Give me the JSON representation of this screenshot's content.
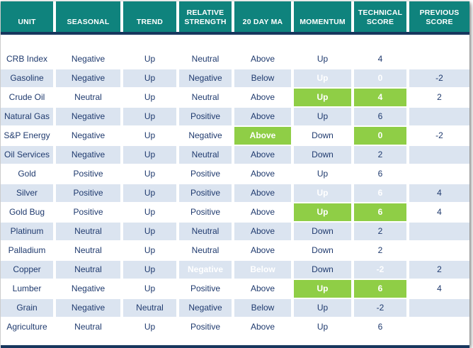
{
  "colors": {
    "header_background": "#0f837d",
    "border_navy": "#17375e",
    "text_navy": "#1f3a6e",
    "row_stripe_blue": "#dbe4f0",
    "highlight_green": "#8fce46",
    "highlight_red": "#f23b3b"
  },
  "chart_data": {
    "type": "table",
    "title": "",
    "columns": [
      "UNIT",
      "SEASONAL",
      "TREND",
      "RELATIVE STRENGTH",
      "20 DAY MA",
      "MOMENTUM",
      "TECHNICAL SCORE",
      "PREVIOUS SCORE"
    ],
    "rows": [
      {
        "cells": [
          {
            "t": "CRB Index"
          },
          {
            "t": "Negative"
          },
          {
            "t": "Up"
          },
          {
            "t": "Neutral"
          },
          {
            "t": "Above"
          },
          {
            "t": "Up"
          },
          {
            "t": "4"
          },
          {
            "t": ""
          }
        ]
      },
      {
        "cells": [
          {
            "t": "Gasoline"
          },
          {
            "t": "Negative"
          },
          {
            "t": "Up"
          },
          {
            "t": "Negative"
          },
          {
            "t": "Below"
          },
          {
            "t": "Up",
            "h": "green"
          },
          {
            "t": "0",
            "h": "green"
          },
          {
            "t": "-2"
          }
        ]
      },
      {
        "cells": [
          {
            "t": "Crude Oil"
          },
          {
            "t": "Neutral"
          },
          {
            "t": "Up"
          },
          {
            "t": "Neutral"
          },
          {
            "t": "Above"
          },
          {
            "t": "Up",
            "h": "green"
          },
          {
            "t": "4",
            "h": "green"
          },
          {
            "t": "2"
          }
        ]
      },
      {
        "cells": [
          {
            "t": "Natural Gas"
          },
          {
            "t": "Negative"
          },
          {
            "t": "Up"
          },
          {
            "t": "Positive"
          },
          {
            "t": "Above"
          },
          {
            "t": "Up"
          },
          {
            "t": "6"
          },
          {
            "t": ""
          }
        ]
      },
      {
        "cells": [
          {
            "t": "S&P Energy"
          },
          {
            "t": "Negative"
          },
          {
            "t": "Up"
          },
          {
            "t": "Negative"
          },
          {
            "t": "Above",
            "h": "green"
          },
          {
            "t": "Down"
          },
          {
            "t": "0",
            "h": "green"
          },
          {
            "t": "-2"
          }
        ]
      },
      {
        "cells": [
          {
            "t": "Oil Services"
          },
          {
            "t": "Negative"
          },
          {
            "t": "Up"
          },
          {
            "t": "Neutral"
          },
          {
            "t": "Above"
          },
          {
            "t": "Down"
          },
          {
            "t": "2"
          },
          {
            "t": ""
          }
        ]
      },
      {
        "cells": [
          {
            "t": "Gold"
          },
          {
            "t": "Positive"
          },
          {
            "t": "Up"
          },
          {
            "t": "Positive"
          },
          {
            "t": "Above"
          },
          {
            "t": "Up"
          },
          {
            "t": "6"
          },
          {
            "t": ""
          }
        ]
      },
      {
        "cells": [
          {
            "t": "Silver"
          },
          {
            "t": "Positive"
          },
          {
            "t": "Up"
          },
          {
            "t": "Positive"
          },
          {
            "t": "Above"
          },
          {
            "t": "Up",
            "h": "green"
          },
          {
            "t": "6",
            "h": "green"
          },
          {
            "t": "4"
          }
        ]
      },
      {
        "cells": [
          {
            "t": "Gold Bug"
          },
          {
            "t": "Positive"
          },
          {
            "t": "Up"
          },
          {
            "t": "Positive"
          },
          {
            "t": "Above"
          },
          {
            "t": "Up",
            "h": "green"
          },
          {
            "t": "6",
            "h": "green"
          },
          {
            "t": "4"
          }
        ]
      },
      {
        "cells": [
          {
            "t": "Platinum"
          },
          {
            "t": "Neutral"
          },
          {
            "t": "Up"
          },
          {
            "t": "Neutral"
          },
          {
            "t": "Above"
          },
          {
            "t": "Down"
          },
          {
            "t": "2"
          },
          {
            "t": ""
          }
        ]
      },
      {
        "cells": [
          {
            "t": "Palladium"
          },
          {
            "t": "Neutral"
          },
          {
            "t": "Up"
          },
          {
            "t": "Neutral"
          },
          {
            "t": "Above"
          },
          {
            "t": "Down"
          },
          {
            "t": "2"
          },
          {
            "t": ""
          }
        ]
      },
      {
        "cells": [
          {
            "t": "Copper"
          },
          {
            "t": "Neutral"
          },
          {
            "t": "Up"
          },
          {
            "t": "Negative",
            "h": "red"
          },
          {
            "t": "Below",
            "h": "red"
          },
          {
            "t": "Down"
          },
          {
            "t": "-2",
            "h": "red"
          },
          {
            "t": "2"
          }
        ]
      },
      {
        "cells": [
          {
            "t": "Lumber"
          },
          {
            "t": "Negative"
          },
          {
            "t": "Up"
          },
          {
            "t": "Positive"
          },
          {
            "t": "Above"
          },
          {
            "t": "Up",
            "h": "green"
          },
          {
            "t": "6",
            "h": "green"
          },
          {
            "t": "4"
          }
        ]
      },
      {
        "cells": [
          {
            "t": "Grain"
          },
          {
            "t": "Negative"
          },
          {
            "t": "Neutral"
          },
          {
            "t": "Negative"
          },
          {
            "t": "Below"
          },
          {
            "t": "Up"
          },
          {
            "t": "-2"
          },
          {
            "t": ""
          }
        ]
      },
      {
        "cells": [
          {
            "t": "Agriculture"
          },
          {
            "t": "Neutral"
          },
          {
            "t": "Up"
          },
          {
            "t": "Positive"
          },
          {
            "t": "Above"
          },
          {
            "t": "Up"
          },
          {
            "t": "6"
          },
          {
            "t": ""
          }
        ]
      }
    ]
  }
}
